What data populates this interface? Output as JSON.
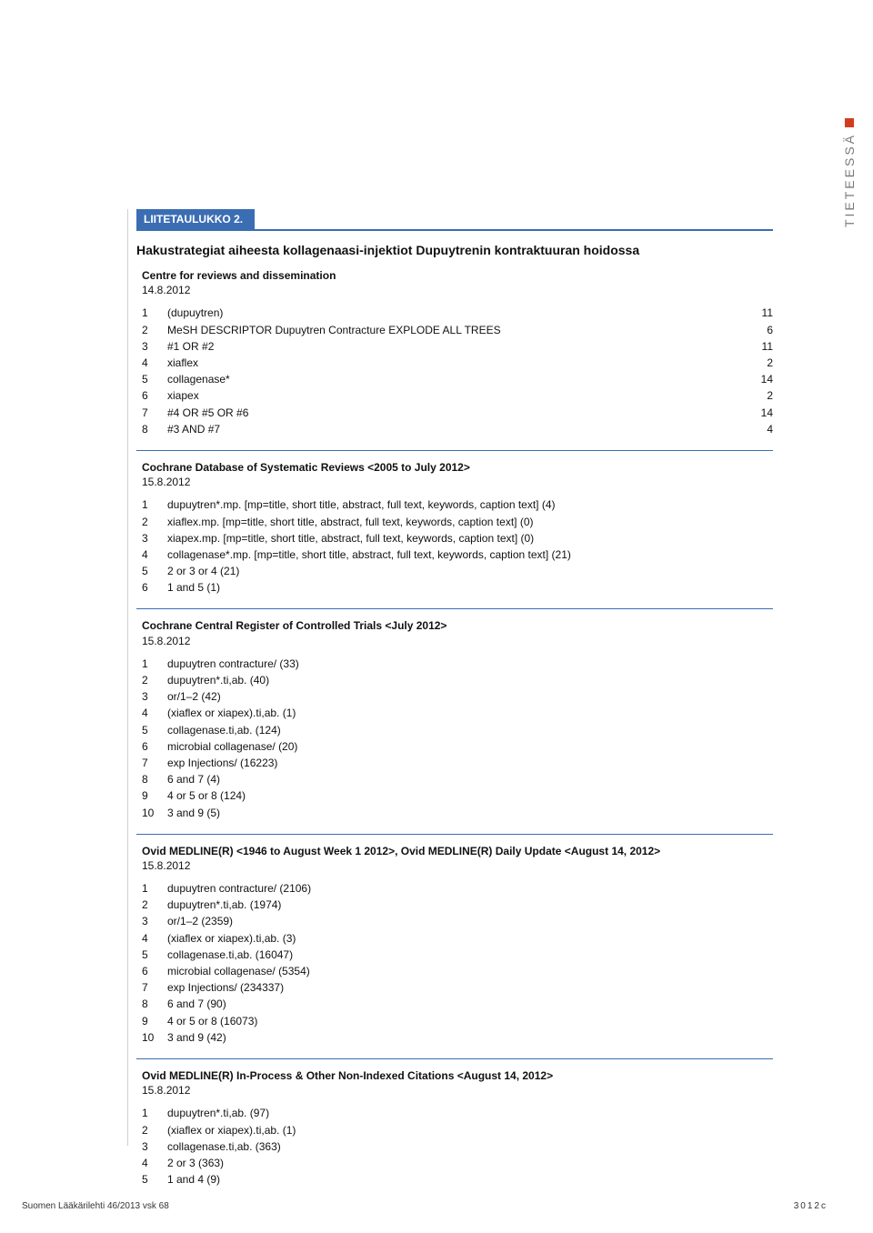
{
  "sideLabel": "TIETEESSÄ",
  "labelBar": "LIITETAULUKKO 2.",
  "title": "Hakustrategiat aiheesta kollagenaasi-injektiot Dupuytrenin kontraktuuran hoidossa",
  "sections": [
    {
      "head": "Centre for reviews and dissemination",
      "date": "14.8.2012",
      "hasValues": true,
      "rows": [
        {
          "n": "1",
          "t": "(dupuytren)",
          "v": "11"
        },
        {
          "n": "2",
          "t": "MeSH DESCRIPTOR Dupuytren Contracture EXPLODE ALL TREES",
          "v": "6"
        },
        {
          "n": "3",
          "t": "#1 OR #2",
          "v": "11"
        },
        {
          "n": "4",
          "t": "xiaflex",
          "v": "2"
        },
        {
          "n": "5",
          "t": "collagenase*",
          "v": "14"
        },
        {
          "n": "6",
          "t": "xiapex",
          "v": "2"
        },
        {
          "n": "7",
          "t": "#4 OR #5 OR #6",
          "v": "14"
        },
        {
          "n": "8",
          "t": "#3 AND #7",
          "v": "4"
        }
      ]
    },
    {
      "head": "Cochrane Database of Systematic Reviews <2005 to July 2012>",
      "date": "15.8.2012",
      "hasValues": false,
      "rows": [
        {
          "n": "1",
          "t": "dupuytren*.mp. [mp=title, short title, abstract, full text, keywords, caption text] (4)"
        },
        {
          "n": "2",
          "t": "xiaflex.mp. [mp=title, short title, abstract, full text, keywords, caption text] (0)"
        },
        {
          "n": "3",
          "t": "xiapex.mp. [mp=title, short title, abstract, full text, keywords, caption text] (0)"
        },
        {
          "n": "4",
          "t": "collagenase*.mp. [mp=title, short title, abstract, full text, keywords, caption text] (21)"
        },
        {
          "n": "5",
          "t": "2 or 3 or 4 (21)"
        },
        {
          "n": "6",
          "t": "1 and 5 (1)"
        }
      ]
    },
    {
      "head": "Cochrane Central Register of Controlled Trials <July 2012>",
      "date": "15.8.2012",
      "hasValues": false,
      "rows": [
        {
          "n": "1",
          "t": "dupuytren contracture/ (33)"
        },
        {
          "n": "2",
          "t": "dupuytren*.ti,ab. (40)"
        },
        {
          "n": "3",
          "t": "or/1–2 (42)"
        },
        {
          "n": "4",
          "t": "(xiaflex or xiapex).ti,ab. (1)"
        },
        {
          "n": "5",
          "t": "collagenase.ti,ab. (124)"
        },
        {
          "n": "6",
          "t": "microbial collagenase/ (20)"
        },
        {
          "n": "7",
          "t": "exp Injections/ (16223)"
        },
        {
          "n": "8",
          "t": "6 and 7 (4)"
        },
        {
          "n": "9",
          "t": "4 or 5 or 8 (124)"
        },
        {
          "n": "10",
          "t": "3 and 9 (5)"
        }
      ]
    },
    {
      "head": "Ovid MEDLINE(R) <1946 to August Week 1 2012>, Ovid MEDLINE(R) Daily Update <August 14, 2012>",
      "date": "15.8.2012",
      "hasValues": false,
      "rows": [
        {
          "n": "1",
          "t": "dupuytren contracture/ (2106)"
        },
        {
          "n": "2",
          "t": "dupuytren*.ti,ab. (1974)"
        },
        {
          "n": "3",
          "t": "or/1–2 (2359)"
        },
        {
          "n": "4",
          "t": "(xiaflex or xiapex).ti,ab. (3)"
        },
        {
          "n": "5",
          "t": "collagenase.ti,ab. (16047)"
        },
        {
          "n": "6",
          "t": "microbial collagenase/ (5354)"
        },
        {
          "n": "7",
          "t": "exp Injections/ (234337)"
        },
        {
          "n": "8",
          "t": "6 and 7 (90)"
        },
        {
          "n": "9",
          "t": "4 or 5 or 8 (16073)"
        },
        {
          "n": "10",
          "t": "3 and 9 (42)"
        }
      ]
    },
    {
      "head": "Ovid MEDLINE(R) In-Process & Other Non-Indexed Citations <August 14, 2012>",
      "date": "15.8.2012",
      "hasValues": false,
      "rows": [
        {
          "n": "1",
          "t": "dupuytren*.ti,ab. (97)"
        },
        {
          "n": "2",
          "t": "(xiaflex or xiapex).ti,ab. (1)"
        },
        {
          "n": "3",
          "t": "collagenase.ti,ab. (363)"
        },
        {
          "n": "4",
          "t": "2 or 3 (363)"
        },
        {
          "n": "5",
          "t": "1 and 4 (9)"
        }
      ]
    }
  ],
  "footer": {
    "left": "Suomen Lääkärilehti 46/2013 vsk 68",
    "right": "3012c"
  },
  "colors": {
    "blue": "#3b6db3",
    "accent": "#d23c1e"
  }
}
